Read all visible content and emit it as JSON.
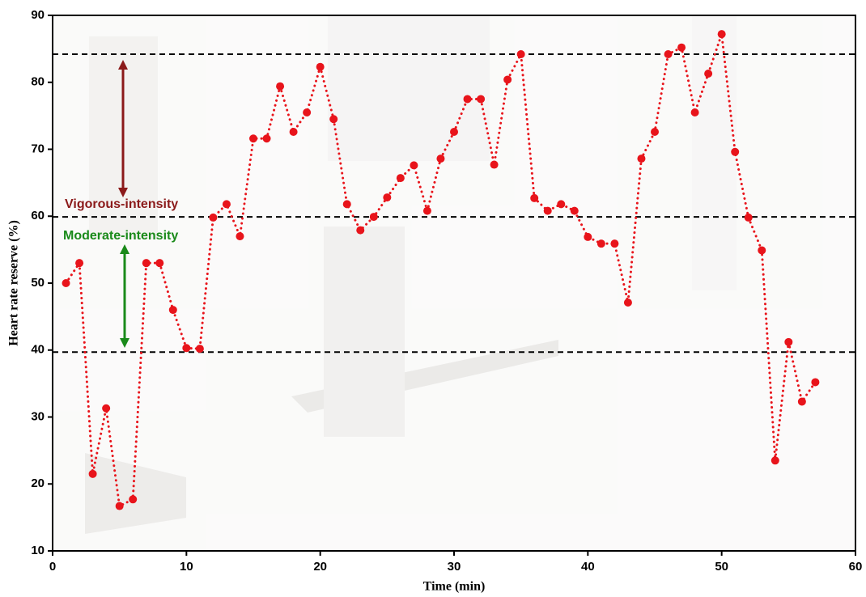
{
  "chart_data": {
    "type": "line",
    "x_label": "Time (min)",
    "y_label": "Heart rate reserve (%)",
    "x": [
      1,
      2,
      3,
      4,
      5,
      6,
      7,
      8,
      9,
      10,
      11,
      12,
      13,
      14,
      15,
      16,
      17,
      18,
      19,
      20,
      21,
      22,
      23,
      24,
      25,
      26,
      27,
      28,
      29,
      30,
      31,
      32,
      33,
      34,
      35,
      36,
      37,
      38,
      39,
      40,
      41,
      42,
      43,
      44,
      45,
      46,
      47,
      48,
      49,
      50,
      51,
      52,
      53,
      54,
      55,
      56,
      57
    ],
    "series": [
      {
        "color": "#e8141b",
        "values": [
          50,
          53,
          21.5,
          31.3,
          16.7,
          17.7,
          53,
          53,
          46,
          40.3,
          40.2,
          59.8,
          61.8,
          57,
          71.6,
          71.6,
          79.4,
          72.6,
          75.5,
          82.3,
          74.5,
          61.8,
          57.9,
          59.9,
          62.8,
          65.7,
          67.6,
          60.8,
          68.6,
          72.6,
          77.5,
          77.5,
          67.7,
          80.4,
          84.2,
          62.7,
          60.8,
          61.8,
          60.8,
          56.9,
          55.9,
          55.9,
          47.1,
          68.6,
          72.6,
          84.2,
          85.2,
          75.5,
          81.3,
          87.2,
          69.6,
          59.8,
          54.9,
          23.5,
          41.2,
          32.3,
          35.2
        ]
      }
    ],
    "xlim": [
      0,
      60
    ],
    "xticks": [
      0,
      10,
      20,
      30,
      40,
      50,
      60
    ],
    "ylim": [
      10,
      90
    ],
    "yticks": [
      10,
      20,
      30,
      40,
      50,
      60,
      70,
      80,
      90
    ],
    "reference_lines": {
      "values": [
        84.2,
        59.9,
        39.7
      ],
      "color": "#000000"
    },
    "annotations": [
      {
        "text": "Vigorous-intensity",
        "color": "#8b1a1a"
      },
      {
        "text": "Moderate-intensity",
        "color": "#1a8a1a"
      }
    ]
  }
}
